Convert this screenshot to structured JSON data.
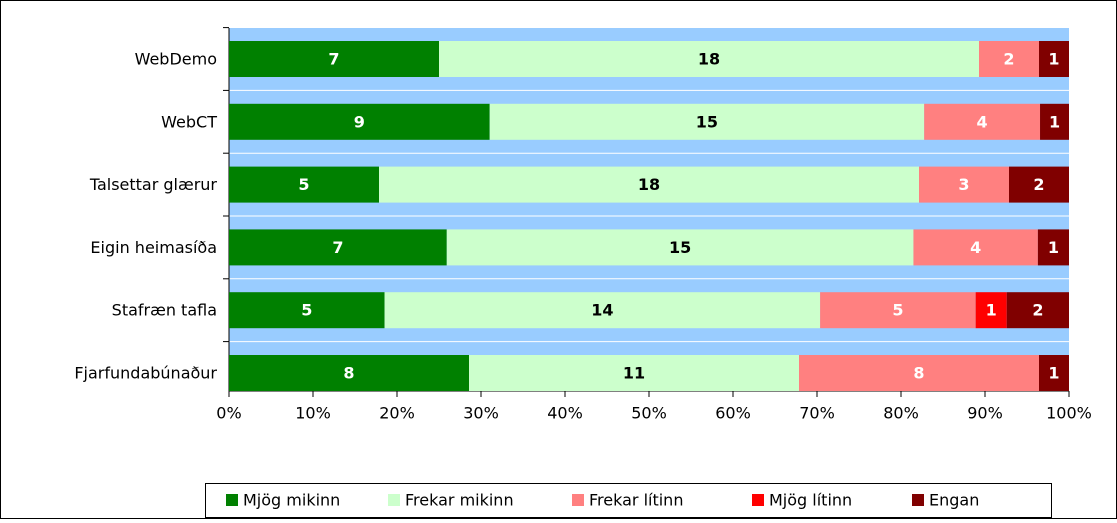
{
  "chart_data": {
    "type": "stacked_percent_barh",
    "categories": [
      "WebDemo",
      "WebCT",
      "Talsettar glærur",
      "Eigin heimasíða",
      "Stafræn tafla",
      "Fjarfundabúnaður"
    ],
    "series": [
      {
        "name": "Mjög mikinn",
        "color": "#008000",
        "label_color": "#ffffff",
        "values": [
          7,
          9,
          5,
          7,
          5,
          8
        ]
      },
      {
        "name": "Frekar mikinn",
        "color": "#ccffcc",
        "label_color": "#000000",
        "values": [
          18,
          15,
          18,
          15,
          14,
          11
        ]
      },
      {
        "name": "Frekar lítinn",
        "color": "#ff8080",
        "label_color": "#ffffff",
        "values": [
          2,
          4,
          3,
          4,
          5,
          8
        ]
      },
      {
        "name": "Mjög lítinn",
        "color": "#ff0000",
        "label_color": "#ffffff",
        "values": [
          null,
          null,
          null,
          null,
          1,
          null
        ]
      },
      {
        "name": "Engan",
        "color": "#800000",
        "label_color": "#ffffff",
        "values": [
          1,
          1,
          2,
          1,
          2,
          1
        ]
      }
    ],
    "xlim": [
      0,
      100
    ],
    "xticks": [
      {
        "value": 0,
        "label": "0%"
      },
      {
        "value": 10,
        "label": "10%"
      },
      {
        "value": 20,
        "label": "20%"
      },
      {
        "value": 30,
        "label": "30%"
      },
      {
        "value": 40,
        "label": "40%"
      },
      {
        "value": 50,
        "label": "50%"
      },
      {
        "value": 60,
        "label": "60%"
      },
      {
        "value": 70,
        "label": "70%"
      },
      {
        "value": 80,
        "label": "80%"
      },
      {
        "value": 90,
        "label": "90%"
      },
      {
        "value": 100,
        "label": "100%"
      }
    ],
    "plot_background": "#99ccff",
    "legend": "bottom"
  }
}
